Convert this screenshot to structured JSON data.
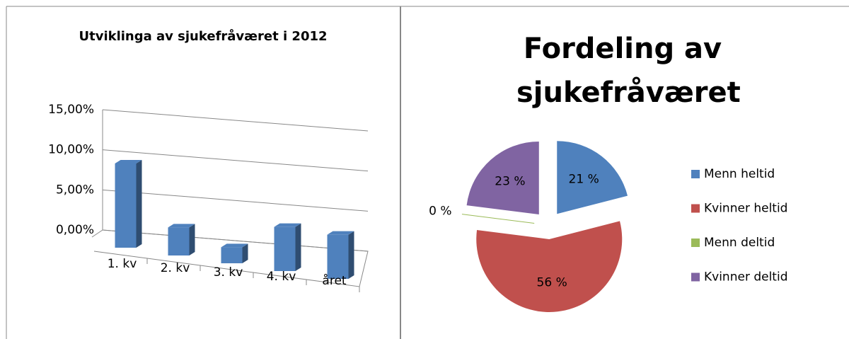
{
  "chart_data": [
    {
      "type": "bar3d",
      "title": "Utviklinga av sjukefråværet i 2012",
      "categories": [
        "1. kv",
        "2. kv",
        "3. kv",
        "4. kv",
        "året"
      ],
      "values": [
        10.5,
        3.5,
        2,
        5.5,
        5.5
      ],
      "color": "#4f81bd",
      "ylim": [
        0,
        15
      ],
      "yticks": [
        {
          "value": 0,
          "label": "0,00%"
        },
        {
          "value": 5,
          "label": "5,00%"
        },
        {
          "value": 10,
          "label": "10,00%"
        },
        {
          "value": 15,
          "label": "15,00%"
        }
      ],
      "grid": true
    },
    {
      "type": "pie",
      "title": "Fordeling av sjukefråværet",
      "categories": [
        "Menn heltid",
        "Kvinner heltid",
        "Menn deltid",
        "Kvinner deltid"
      ],
      "values": [
        21,
        56,
        0,
        23
      ],
      "value_labels": [
        "21 %",
        "56 %",
        "0 %",
        "23 %"
      ],
      "colors": [
        "#4f81bd",
        "#c0504d",
        "#9bbb59",
        "#8064a2"
      ],
      "legend": "right"
    }
  ]
}
